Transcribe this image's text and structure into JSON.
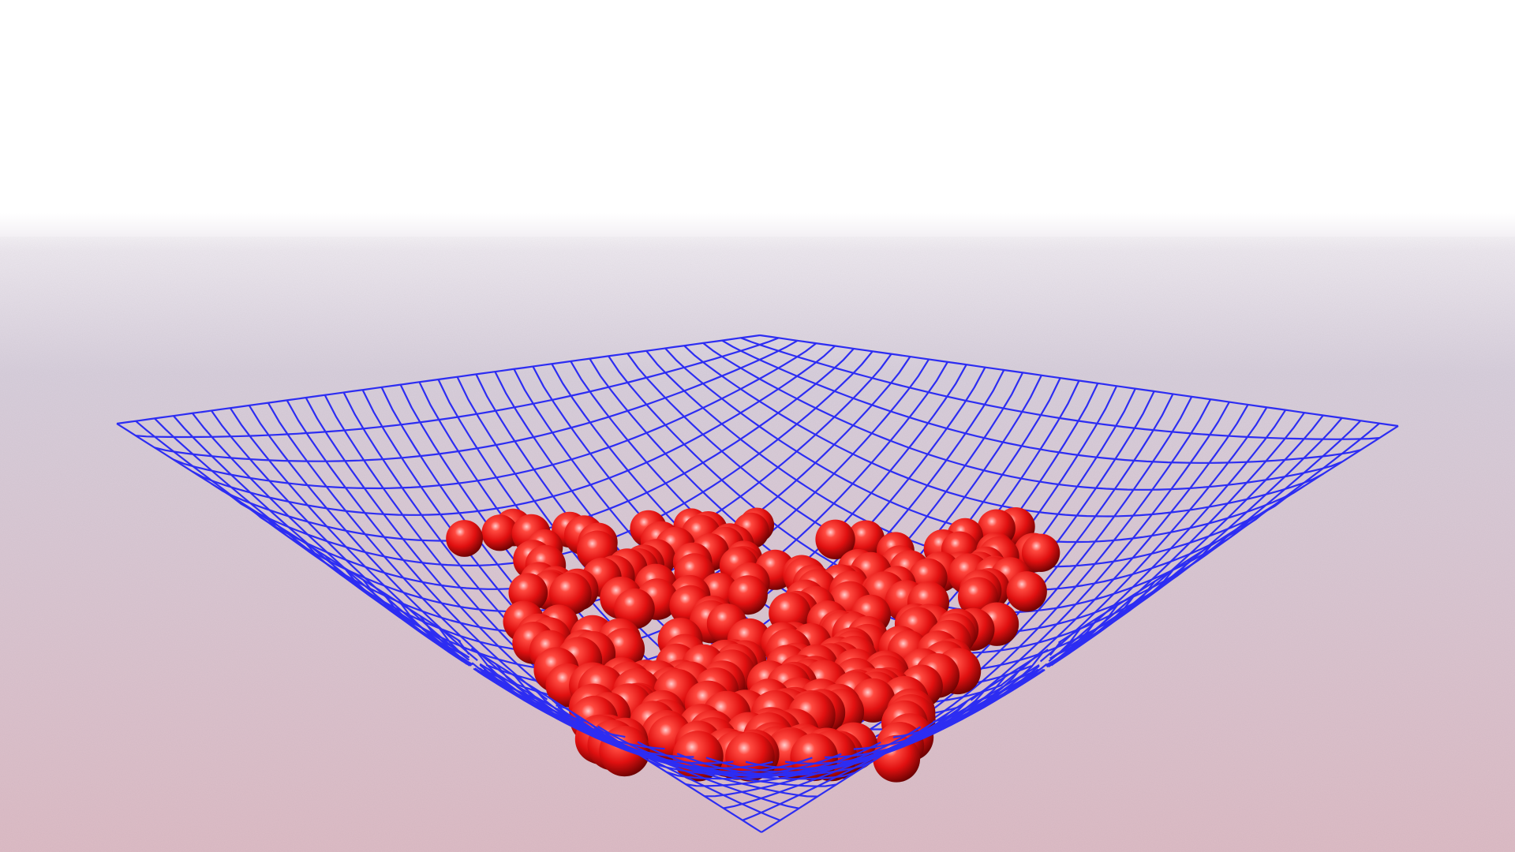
{
  "scene": {
    "subject": "net-holding-spheres",
    "colors": {
      "sky": "#ffffff",
      "ground_far": "#d8cfdc",
      "ground_near": "#ddbcc6",
      "net": "#2d2df2",
      "sphere": "#e01010",
      "sphere_shadow": "#5a0000",
      "sphere_highlight": "#ffd0d0"
    }
  }
}
